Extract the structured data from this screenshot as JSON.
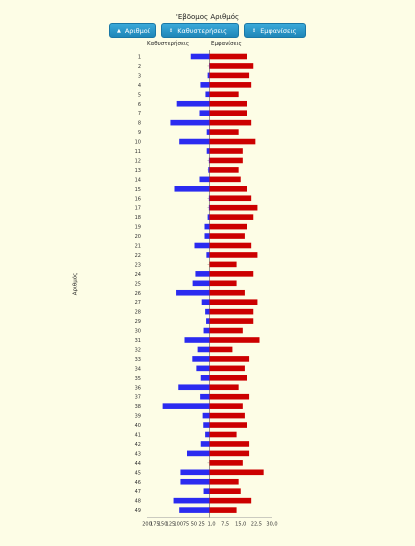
{
  "title": "'Εβδομος Αριθμός",
  "buttons": [
    {
      "label": "Αριθμοί",
      "icon": "up-arrow-icon"
    },
    {
      "label": "Καθυστερήσεις",
      "icon": "sort-icon"
    },
    {
      "label": "Εμφανίσεις",
      "icon": "sort-icon"
    }
  ],
  "colors": {
    "delay_bar": "#2b2bf0",
    "occurrence_bar": "#cc0000",
    "background": "#fdfde6",
    "button": "#2596c8"
  },
  "chart_data": {
    "type": "bar",
    "orientation": "horizontal",
    "ylabel": "Αριθμός",
    "left_axis_label": "Καθυστερήσεις",
    "right_axis_label": "Εμφανίσεις",
    "left_ticks": [
      "200",
      "175",
      "150",
      "125",
      "100",
      "75",
      "50",
      "25"
    ],
    "right_ticks": [
      "1,0",
      "7,5",
      "15,0",
      "22,5",
      "30,0"
    ],
    "delays_range": [
      0,
      200
    ],
    "occurrences_range": [
      0,
      30
    ],
    "categories": [
      "1",
      "2",
      "3",
      "4",
      "5",
      "6",
      "7",
      "8",
      "9",
      "10",
      "11",
      "12",
      "13",
      "14",
      "15",
      "16",
      "17",
      "18",
      "19",
      "20",
      "21",
      "22",
      "23",
      "24",
      "25",
      "26",
      "27",
      "28",
      "29",
      "30",
      "31",
      "32",
      "33",
      "34",
      "35",
      "36",
      "37",
      "38",
      "39",
      "40",
      "41",
      "42",
      "43",
      "44",
      "45",
      "46",
      "47",
      "48",
      "49"
    ],
    "series": [
      {
        "name": "Καθυστερήσεις",
        "values": [
          60,
          1,
          6,
          29,
          13,
          105,
          32,
          125,
          9,
          97,
          9,
          2,
          4,
          32,
          112,
          2,
          2,
          6,
          16,
          16,
          48,
          10,
          0,
          45,
          54,
          107,
          25,
          14,
          11,
          19,
          80,
          38,
          55,
          42,
          28,
          100,
          30,
          150,
          22,
          20,
          14,
          28,
          72,
          0,
          93,
          93,
          19,
          115,
          97
        ]
      },
      {
        "name": "Εμφανίσεις",
        "values": [
          18,
          21,
          19,
          20,
          14,
          18,
          18,
          20,
          14,
          22,
          16,
          16,
          14,
          15,
          18,
          20,
          23,
          21,
          18,
          17,
          20,
          23,
          13,
          21,
          13,
          17,
          23,
          21,
          21,
          16,
          24,
          11,
          19,
          17,
          18,
          14,
          19,
          16,
          17,
          18,
          13,
          19,
          19,
          16,
          26,
          14,
          15,
          20,
          13
        ]
      }
    ]
  }
}
